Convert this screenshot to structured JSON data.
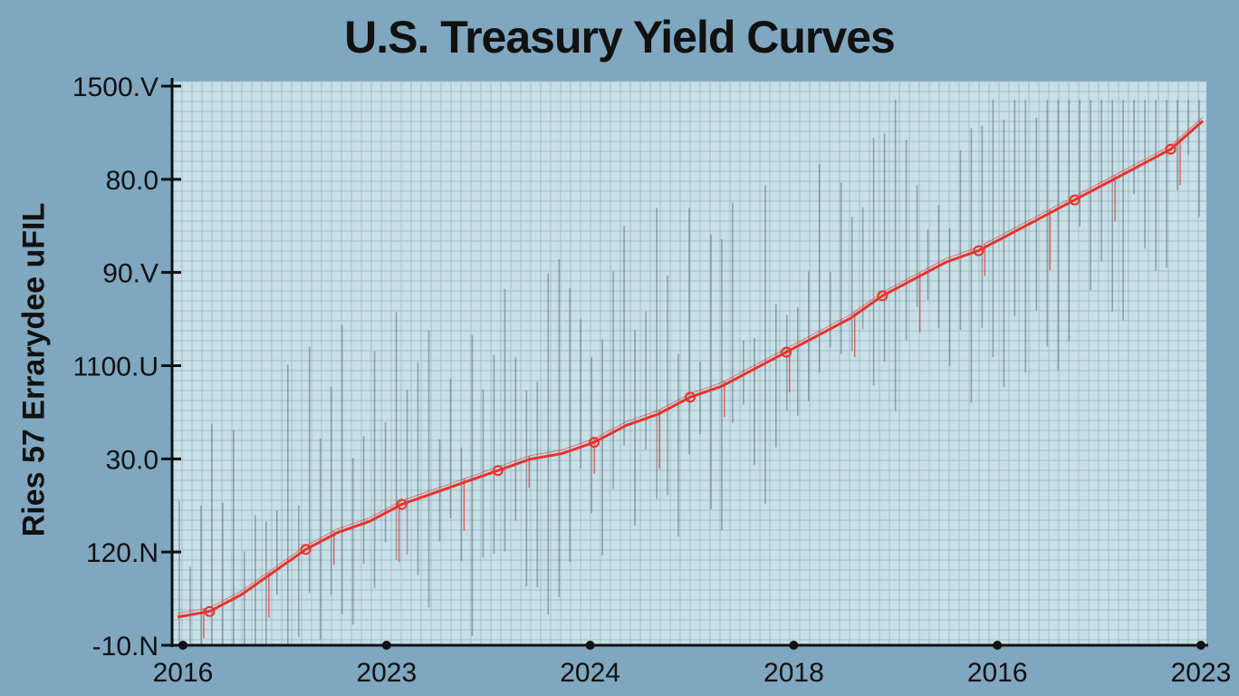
{
  "colors": {
    "background": "#7fa7bf",
    "plot_background": "#c9dfe6",
    "grid": "#9fbfcc",
    "series_line": "#e8332c",
    "spikes": "#5d6d74",
    "axis": "#111111"
  },
  "chart_data": {
    "type": "line",
    "title": "U.S. Treasury Yield Curves",
    "ylabel": "Ries 57 Errarydee uFIL",
    "xlabel": "",
    "y_tick_labels": [
      "1500.V",
      "80.0",
      "90.V",
      "1100.U",
      "30.0",
      "120.N",
      "-10.N"
    ],
    "x_tick_labels": [
      "2016",
      "2023",
      "2024",
      "2018",
      "2016",
      "2023"
    ],
    "grid": true,
    "legend": "none",
    "series": [
      {
        "values": [
          0.05,
          0.06,
          0.09,
          0.13,
          0.17,
          0.2,
          0.22,
          0.25,
          0.27,
          0.29,
          0.31,
          0.33,
          0.34,
          0.36,
          0.39,
          0.41,
          0.44,
          0.46,
          0.49,
          0.52,
          0.55,
          0.58,
          0.62,
          0.65,
          0.68,
          0.7,
          0.73,
          0.76,
          0.79,
          0.82,
          0.85,
          0.88,
          0.93
        ]
      }
    ]
  }
}
